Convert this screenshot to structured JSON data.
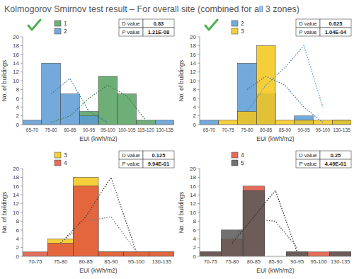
{
  "title": "Kolmogorov Smirnov test result – For overall site (combined for all 3 zones)",
  "chart_data": [
    {
      "type": "bar",
      "xlabel": "EUI (kWh/m2)",
      "ylabel": "No. of buildings",
      "categories": [
        "65-70",
        "75-80",
        "80-85",
        "90-95",
        "95-100",
        "100-105",
        "115-120",
        "130-135"
      ],
      "series": [
        {
          "name": "1",
          "color": "#55a05f",
          "values": [
            0,
            0,
            0,
            3,
            11,
            7,
            1,
            0
          ]
        },
        {
          "name": "2",
          "color": "#5b9bd5",
          "values": [
            1,
            14,
            7,
            2,
            0,
            0,
            0,
            1
          ]
        },
        {
          "type": "line",
          "line_style": "dotted",
          "color": "#2e75b6",
          "values": [
            null,
            7,
            10.5,
            3,
            0.5,
            null,
            null,
            null
          ]
        },
        {
          "type": "line",
          "line_style": "dotted",
          "color": "#3a7d44",
          "values": [
            null,
            0.5,
            2,
            6,
            9,
            6.5,
            1,
            null
          ]
        }
      ],
      "ylim": [
        0,
        20
      ],
      "yticks": [
        0,
        2,
        4,
        6,
        8,
        10,
        12,
        14,
        16,
        18,
        20
      ],
      "grid": false,
      "legend": "top",
      "stats": [
        {
          "name": "D value",
          "value": 0.83
        },
        {
          "name": "P value",
          "value": 1.21e-08,
          "value_label": "1.21E-08"
        }
      ]
    },
    {
      "type": "bar",
      "xlabel": "EUI (kWh/m2)",
      "ylabel": "No. of buildings",
      "categories": [
        "65-70",
        "70-75",
        "75-80",
        "80-85",
        "85-90",
        "90-95",
        "95-100",
        "130-135"
      ],
      "series": [
        {
          "name": "2",
          "color": "#5b9bd5",
          "values": [
            1,
            0,
            14,
            7,
            0,
            2,
            0,
            1
          ]
        },
        {
          "name": "3",
          "color": "#f5c518",
          "values": [
            0,
            1,
            3,
            18,
            1,
            1,
            1,
            1
          ]
        },
        {
          "type": "line",
          "line_style": "dotted",
          "color": "#2e75b6",
          "values": [
            null,
            null,
            8,
            11,
            9,
            4,
            0.5,
            null
          ]
        },
        {
          "type": "line",
          "line_style": "dotted",
          "color": "#4a90c8",
          "values": [
            null,
            null,
            3,
            9,
            13,
            18,
            4,
            null
          ]
        }
      ],
      "ylim": [
        0,
        20
      ],
      "yticks": [
        0,
        2,
        4,
        6,
        8,
        10,
        12,
        14,
        16,
        18,
        20
      ],
      "grid": false,
      "legend": "top",
      "stats": [
        {
          "name": "D value",
          "value": 0.625
        },
        {
          "name": "P value",
          "value": 0.000104,
          "value_label": "1.04E-04"
        }
      ]
    },
    {
      "type": "bar",
      "xlabel": "EUI (kWh/m2)",
      "ylabel": "No. of buildings",
      "categories": [
        "70-75",
        "75-80",
        "80-85",
        "85-90",
        "95-100",
        "130-135"
      ],
      "series": [
        {
          "name": "3",
          "color": "#f5c518",
          "values": [
            0,
            4,
            18,
            1,
            1,
            1
          ]
        },
        {
          "name": "4",
          "color": "#e0533e",
          "values": [
            1,
            3,
            16,
            1,
            1,
            1
          ]
        },
        {
          "type": "line",
          "line_style": "dotted",
          "color": "#404040",
          "values": [
            null,
            3,
            9,
            18,
            1,
            null
          ]
        },
        {
          "type": "line",
          "line_style": "dotted",
          "color": "#7f7f7f",
          "values": [
            null,
            3,
            8,
            9,
            1,
            null
          ]
        }
      ],
      "ylim": [
        0,
        20
      ],
      "yticks": [
        0,
        2,
        4,
        6,
        8,
        10,
        12,
        14,
        16,
        18,
        20
      ],
      "grid": false,
      "legend": "top",
      "stats": [
        {
          "name": "D value",
          "value": 0.125
        },
        {
          "name": "P value",
          "value": 0.994,
          "value_label": "9.94E-01"
        }
      ]
    },
    {
      "type": "bar",
      "xlabel": "EUI (kWh/m2)",
      "ylabel": "No. of buildings",
      "categories": [
        "70-75",
        "75-80",
        "80-85",
        "85-90",
        "90-95",
        "95-100",
        "130-135"
      ],
      "series": [
        {
          "name": "4",
          "color": "#e0533e",
          "values": [
            1,
            4,
            16,
            0,
            1,
            1,
            1
          ]
        },
        {
          "name": "5",
          "color": "#595959",
          "values": [
            1,
            6,
            15,
            0,
            1,
            0,
            1
          ]
        },
        {
          "type": "line",
          "line_style": "dotted",
          "color": "#262626",
          "values": [
            null,
            3,
            9,
            15,
            1,
            null,
            null
          ]
        },
        {
          "type": "line",
          "line_style": "dotted",
          "color": "#595959",
          "values": [
            null,
            4,
            8.5,
            8,
            2,
            null,
            null
          ]
        }
      ],
      "ylim": [
        0,
        20
      ],
      "yticks": [
        0,
        2,
        4,
        6,
        8,
        10,
        12,
        14,
        16,
        18,
        20
      ],
      "grid": false,
      "legend": "top",
      "stats": [
        {
          "name": "D value",
          "value": 0.25
        },
        {
          "name": "P value",
          "value": 0.449,
          "value_label": "4.49E-01"
        }
      ]
    }
  ]
}
